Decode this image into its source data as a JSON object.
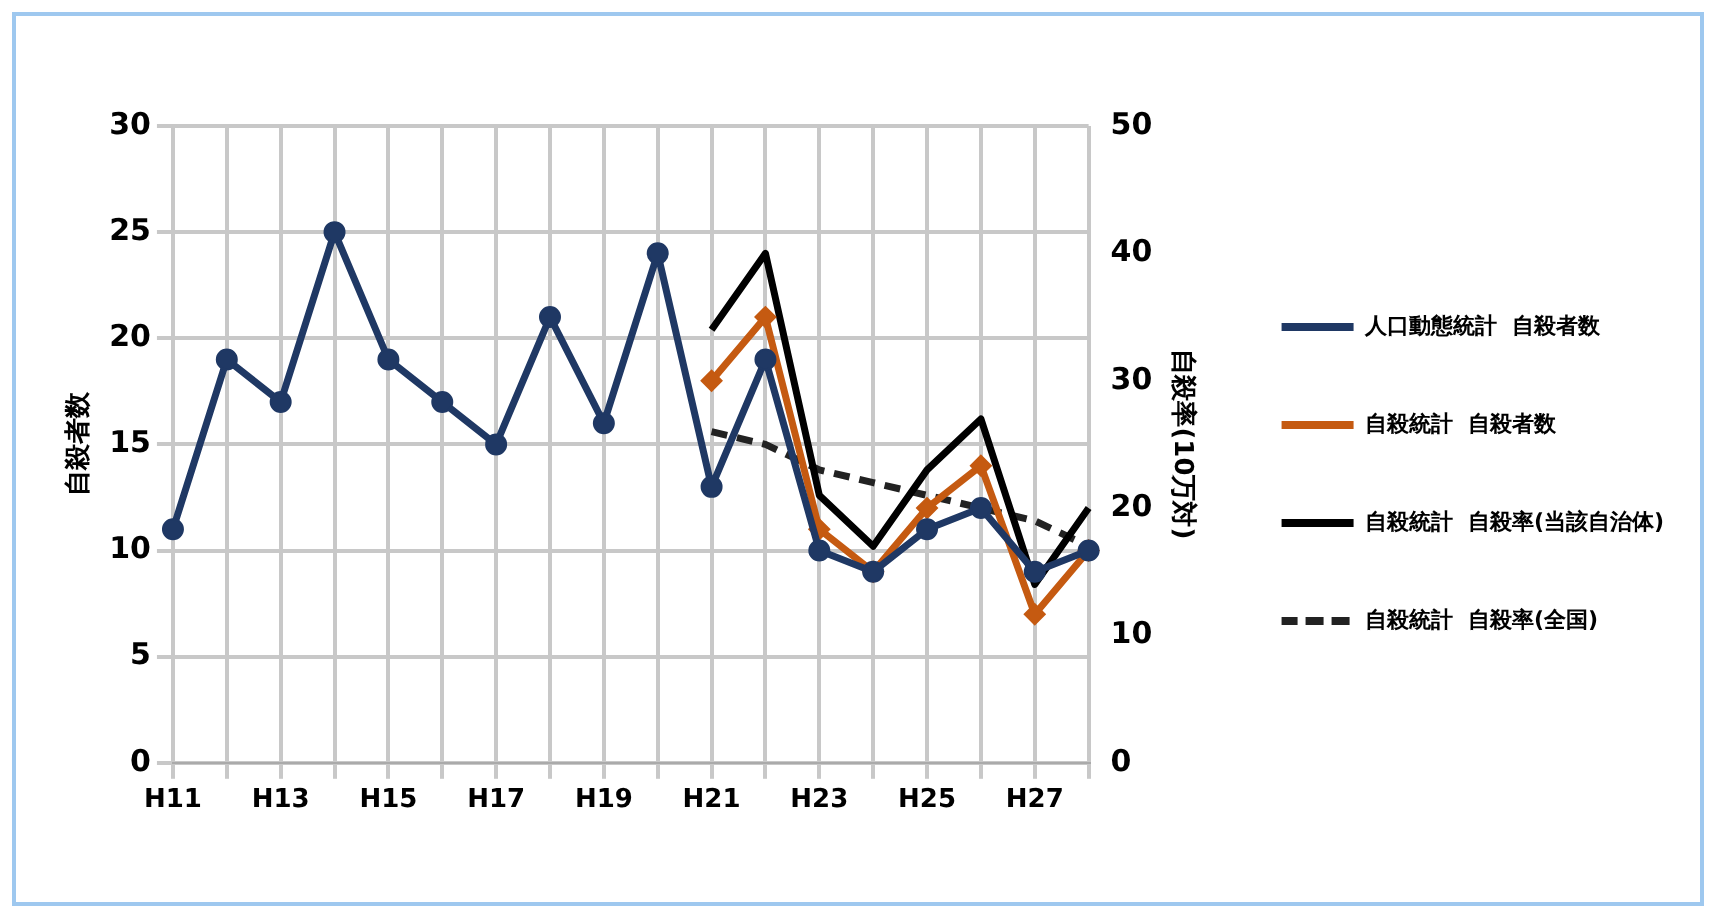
{
  "chart_data": {
    "type": "line",
    "categories": [
      "H11",
      null,
      "H13",
      null,
      "H15",
      null,
      "H17",
      null,
      "H19",
      null,
      "H21",
      null,
      "H23",
      null,
      "H25",
      null,
      "H27",
      null
    ],
    "ylabel": "自殺者数",
    "y2label": "自殺率(10万対)",
    "ylim": [
      0,
      30
    ],
    "yticks": [
      0,
      5,
      10,
      15,
      20,
      25,
      30
    ],
    "y2lim": [
      0,
      50
    ],
    "y2ticks": [
      0,
      10,
      20,
      30,
      40,
      50
    ],
    "grid": true,
    "legend": "right",
    "line_style": "solid",
    "series": [
      {
        "name": "人口動態統計  自殺者数",
        "color": "#1f3864",
        "marker": "circle",
        "values": [
          11,
          19,
          17,
          25,
          19,
          17,
          15,
          21,
          16,
          24,
          13,
          19,
          10,
          9,
          11,
          12,
          9,
          10
        ]
      },
      {
        "name": "自殺統計  自殺者数",
        "color": "#c55a11",
        "marker": "diamond",
        "values": [
          null,
          null,
          null,
          null,
          null,
          null,
          null,
          null,
          null,
          null,
          18,
          21,
          11,
          9,
          12,
          14,
          7,
          10
        ]
      },
      {
        "name": "自殺統計  自殺率(当該自治体)",
        "color": "#000000",
        "marker": "none",
        "axis": "y2",
        "values": [
          null,
          null,
          null,
          null,
          null,
          null,
          null,
          null,
          null,
          null,
          34,
          40,
          21,
          17,
          23,
          27,
          14,
          20
        ]
      },
      {
        "name": "自殺統計  自殺率(全国)",
        "color": "#222222",
        "marker": "none",
        "line_style": "dashed",
        "axis": "y2",
        "values": [
          null,
          null,
          null,
          null,
          null,
          null,
          null,
          null,
          null,
          null,
          26,
          25,
          23,
          22,
          21,
          20,
          19,
          17
        ]
      }
    ]
  }
}
